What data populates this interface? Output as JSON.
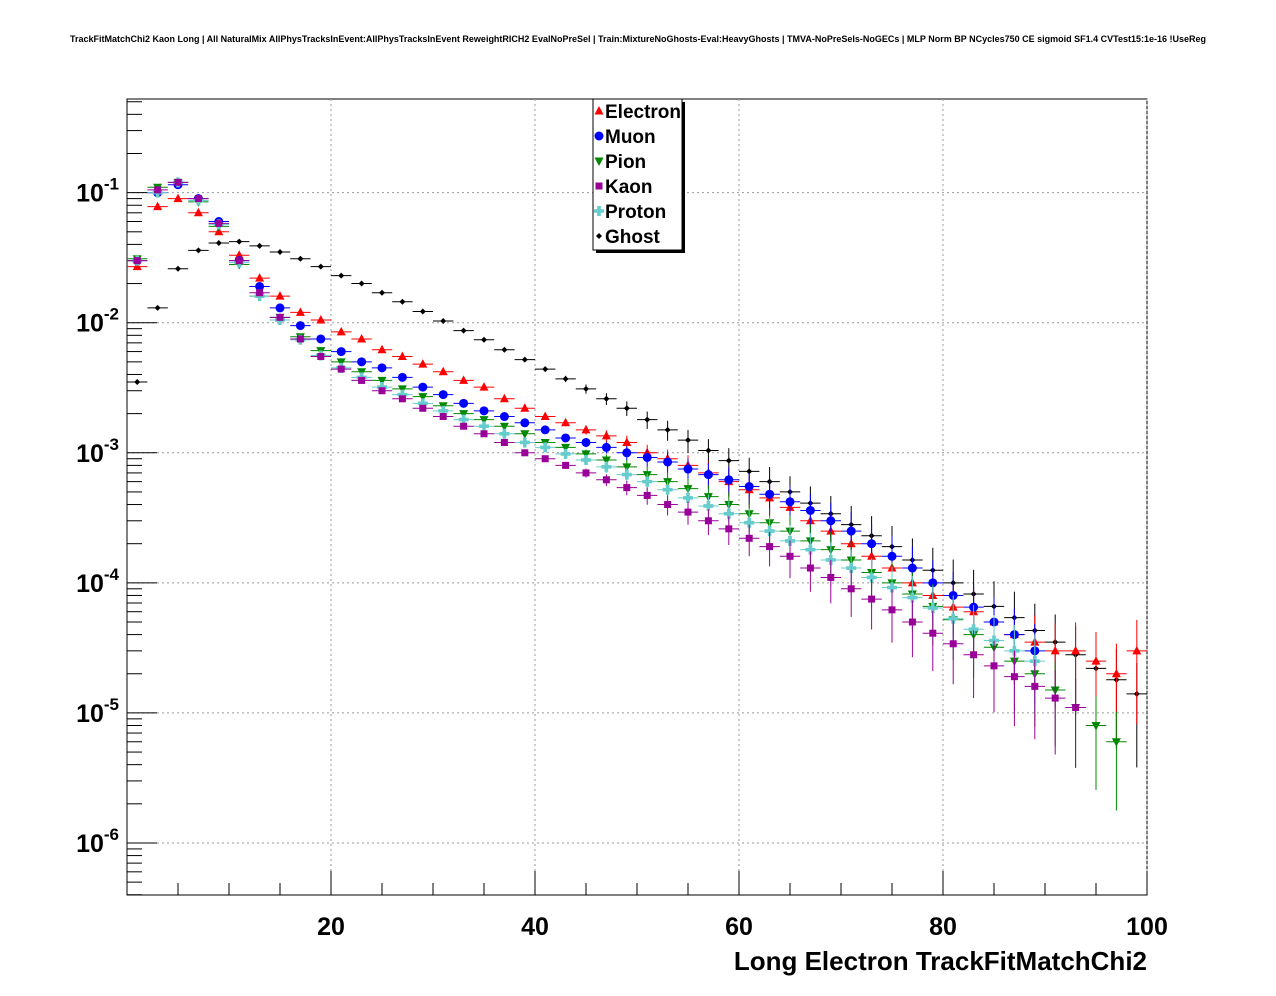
{
  "chart_data": {
    "type": "scatter",
    "title": "TrackFitMatchChi2 Kaon Long | All NaturalMix AllPhysTracksInEvent:AllPhysTracksInEvent ReweightRICH2 EvalNoPreSel | Train:MixtureNoGhosts-Eval:HeavyGhosts | TMVA-NoPreSels-NoGECs | MLP Norm BP NCycles750 CE sigmoid SF1.4 CVTest15:1e-16 !UseReg",
    "xlabel": "Long Electron TrackFitMatchChi2",
    "ylabel": "",
    "xlim": [
      0,
      100
    ],
    "ylim_log10": [
      -6.4,
      -0.28
    ],
    "log_y": true,
    "grid": true,
    "legend_position": "top-center",
    "x_tick_labels": [
      "20",
      "40",
      "60",
      "80",
      "100"
    ],
    "y_tick_labels": [
      {
        "base": "10",
        "exp": "-1"
      },
      {
        "base": "10",
        "exp": "-2"
      },
      {
        "base": "10",
        "exp": "-3"
      },
      {
        "base": "10",
        "exp": "-4"
      },
      {
        "base": "10",
        "exp": "-5"
      },
      {
        "base": "10",
        "exp": "-6"
      }
    ],
    "series": [
      {
        "name": "Electron",
        "color": "#ff0000",
        "marker": "triangle-up",
        "x": [
          1,
          3,
          5,
          7,
          9,
          11,
          13,
          15,
          17,
          19,
          21,
          23,
          25,
          27,
          29,
          31,
          33,
          35,
          37,
          39,
          41,
          43,
          45,
          47,
          49,
          51,
          53,
          55,
          57,
          59,
          61,
          63,
          65,
          67,
          69,
          71,
          73,
          75,
          77,
          79,
          81,
          83,
          85,
          87,
          89,
          91,
          93,
          95,
          97,
          99
        ],
        "y": [
          0.027,
          0.078,
          0.09,
          0.07,
          0.05,
          0.033,
          0.022,
          0.016,
          0.012,
          0.0105,
          0.0085,
          0.0075,
          0.0062,
          0.0055,
          0.0048,
          0.0042,
          0.0036,
          0.0032,
          0.0026,
          0.0022,
          0.0019,
          0.0017,
          0.0015,
          0.00135,
          0.0012,
          0.001,
          0.0009,
          0.0008,
          0.0007,
          0.0006,
          0.00052,
          0.00045,
          0.00038,
          0.0003,
          0.00025,
          0.0002,
          0.00016,
          0.00013,
          0.0001,
          8e-05,
          6.5e-05,
          6e-05,
          5e-05,
          4e-05,
          3.5e-05,
          3e-05,
          3e-05,
          2.5e-05,
          2e-05,
          3e-05
        ]
      },
      {
        "name": "Muon",
        "color": "#0000ff",
        "marker": "circle",
        "x": [
          1,
          3,
          5,
          7,
          9,
          11,
          13,
          15,
          17,
          19,
          21,
          23,
          25,
          27,
          29,
          31,
          33,
          35,
          37,
          39,
          41,
          43,
          45,
          47,
          49,
          51,
          53,
          55,
          57,
          59,
          61,
          63,
          65,
          67,
          69,
          71,
          73,
          75,
          77,
          79,
          81,
          83,
          85,
          87,
          89
        ],
        "y": [
          0.03,
          0.1,
          0.115,
          0.09,
          0.06,
          0.03,
          0.019,
          0.013,
          0.0095,
          0.0075,
          0.006,
          0.005,
          0.0045,
          0.0038,
          0.0032,
          0.0028,
          0.0024,
          0.0021,
          0.0019,
          0.0017,
          0.0015,
          0.0013,
          0.0012,
          0.0011,
          0.001,
          0.00092,
          0.00085,
          0.00075,
          0.00068,
          0.00062,
          0.00055,
          0.00048,
          0.00042,
          0.00036,
          0.0003,
          0.00025,
          0.0002,
          0.00016,
          0.00013,
          0.0001,
          8e-05,
          6.5e-05,
          5e-05,
          4e-05,
          3e-05
        ]
      },
      {
        "name": "Pion",
        "color": "#008800",
        "marker": "triangle-down",
        "x": [
          1,
          3,
          5,
          7,
          9,
          11,
          13,
          15,
          17,
          19,
          21,
          23,
          25,
          27,
          29,
          31,
          33,
          35,
          37,
          39,
          41,
          43,
          45,
          47,
          49,
          51,
          53,
          55,
          57,
          59,
          61,
          63,
          65,
          67,
          69,
          71,
          73,
          75,
          77,
          79,
          81,
          83,
          85,
          87,
          89,
          91,
          93,
          95,
          97
        ],
        "y": [
          0.031,
          0.11,
          0.12,
          0.085,
          0.055,
          0.028,
          0.016,
          0.011,
          0.0078,
          0.0061,
          0.005,
          0.0042,
          0.0036,
          0.0031,
          0.0027,
          0.0023,
          0.002,
          0.0018,
          0.0016,
          0.0014,
          0.0012,
          0.0011,
          0.00098,
          0.00088,
          0.00078,
          0.00068,
          0.0006,
          0.00053,
          0.00046,
          0.0004,
          0.00034,
          0.00029,
          0.00025,
          0.00021,
          0.00018,
          0.00015,
          0.00012,
          0.0001,
          8.2e-05,
          6.6e-05,
          5.2e-05,
          4e-05,
          3.2e-05,
          2.5e-05,
          2e-05,
          1.5e-05,
          1.1e-05,
          8e-06,
          6e-06
        ]
      },
      {
        "name": "Kaon",
        "color": "#990099",
        "marker": "square",
        "x": [
          1,
          3,
          5,
          7,
          9,
          11,
          13,
          15,
          17,
          19,
          21,
          23,
          25,
          27,
          29,
          31,
          33,
          35,
          37,
          39,
          41,
          43,
          45,
          47,
          49,
          51,
          53,
          55,
          57,
          59,
          61,
          63,
          65,
          67,
          69,
          71,
          73,
          75,
          77,
          79,
          81,
          83,
          85,
          87,
          89,
          91,
          93
        ],
        "y": [
          0.03,
          0.105,
          0.12,
          0.09,
          0.058,
          0.03,
          0.017,
          0.011,
          0.0075,
          0.0055,
          0.0044,
          0.0036,
          0.003,
          0.0026,
          0.0022,
          0.0019,
          0.0016,
          0.0014,
          0.0012,
          0.001,
          0.0009,
          0.0008,
          0.0007,
          0.00062,
          0.00054,
          0.00047,
          0.0004,
          0.00035,
          0.0003,
          0.00026,
          0.00022,
          0.00019,
          0.00016,
          0.00013,
          0.00011,
          9e-05,
          7.5e-05,
          6.2e-05,
          5e-05,
          4.1e-05,
          3.4e-05,
          2.8e-05,
          2.3e-05,
          1.9e-05,
          1.6e-05,
          1.3e-05,
          1.1e-05
        ]
      },
      {
        "name": "Proton",
        "color": "#66cccc",
        "marker": "cross",
        "x": [
          1,
          3,
          5,
          7,
          9,
          11,
          13,
          15,
          17,
          19,
          21,
          23,
          25,
          27,
          29,
          31,
          33,
          35,
          37,
          39,
          41,
          43,
          45,
          47,
          49,
          51,
          53,
          55,
          57,
          59,
          61,
          63,
          65,
          67,
          69,
          71,
          73,
          75,
          77,
          79,
          81,
          83,
          85,
          87,
          89
        ],
        "y": [
          0.03,
          0.1,
          0.12,
          0.087,
          0.057,
          0.029,
          0.016,
          0.0105,
          0.0074,
          0.0056,
          0.0045,
          0.0038,
          0.0032,
          0.0028,
          0.0024,
          0.0021,
          0.0018,
          0.0016,
          0.0014,
          0.0012,
          0.0011,
          0.00098,
          0.00088,
          0.00078,
          0.00068,
          0.0006,
          0.00052,
          0.00045,
          0.00039,
          0.00034,
          0.00029,
          0.00025,
          0.00021,
          0.00018,
          0.00015,
          0.00013,
          0.00011,
          9.2e-05,
          7.7e-05,
          6.4e-05,
          5.3e-05,
          4.4e-05,
          3.6e-05,
          3e-05,
          2.5e-05
        ]
      },
      {
        "name": "Ghost",
        "color": "#000000",
        "marker": "star",
        "x": [
          1,
          3,
          5,
          7,
          9,
          11,
          13,
          15,
          17,
          19,
          21,
          23,
          25,
          27,
          29,
          31,
          33,
          35,
          37,
          39,
          41,
          43,
          45,
          47,
          49,
          51,
          53,
          55,
          57,
          59,
          61,
          63,
          65,
          67,
          69,
          71,
          73,
          75,
          77,
          79,
          81,
          83,
          85,
          87,
          89,
          91,
          93,
          95,
          97,
          99
        ],
        "y": [
          0.0035,
          0.013,
          0.026,
          0.036,
          0.041,
          0.042,
          0.039,
          0.035,
          0.031,
          0.027,
          0.023,
          0.02,
          0.017,
          0.0145,
          0.0122,
          0.0103,
          0.0087,
          0.0074,
          0.0062,
          0.0052,
          0.0044,
          0.0037,
          0.0031,
          0.0026,
          0.0022,
          0.0018,
          0.0015,
          0.00125,
          0.00104,
          0.00087,
          0.00072,
          0.0006,
          0.0005,
          0.00041,
          0.00034,
          0.00028,
          0.00023,
          0.00019,
          0.00015,
          0.000125,
          0.0001,
          8.2e-05,
          6.6e-05,
          5.4e-05,
          4.3e-05,
          3.5e-05,
          2.8e-05,
          2.2e-05,
          1.8e-05,
          1.4e-05
        ]
      }
    ]
  }
}
